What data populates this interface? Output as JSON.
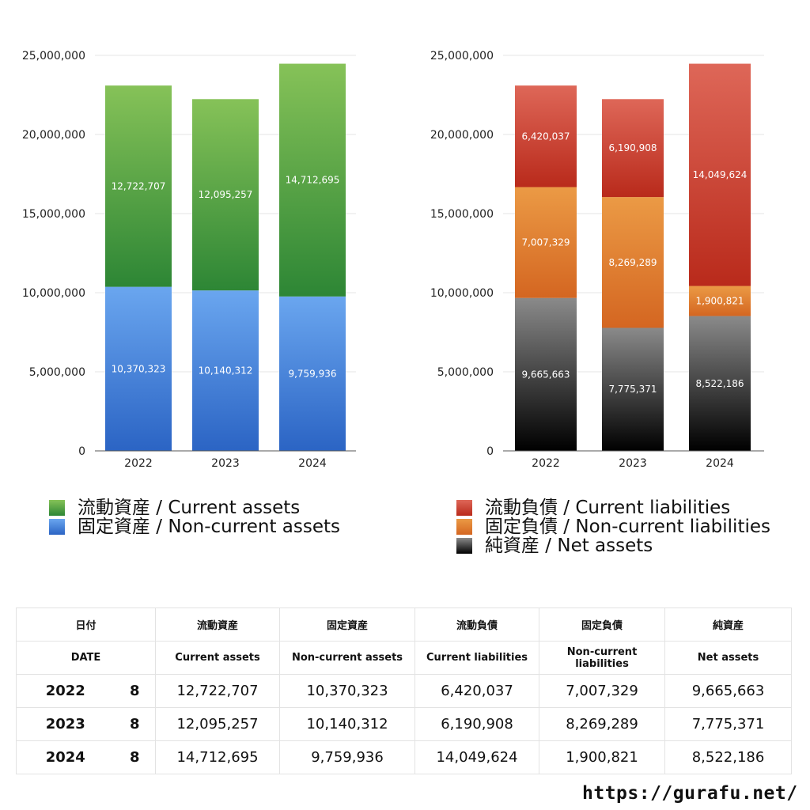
{
  "chart_data": [
    {
      "type": "bar",
      "stacked": true,
      "categories": [
        "2022",
        "2023",
        "2024"
      ],
      "ylim": [
        0,
        25000000
      ],
      "yticks": [
        "0",
        "5,000,000",
        "10,000,000",
        "15,000,000",
        "20,000,000",
        "25,000,000"
      ],
      "grid": true,
      "series": [
        {
          "name": "固定資産 / Non-current assets",
          "values": [
            10370323,
            10140312,
            9759936
          ],
          "labels": [
            "10,370,323",
            "10,140,312",
            "9,759,936"
          ],
          "color_top": "#6aa6ef",
          "color_bottom": "#2b64c4"
        },
        {
          "name": "流動資産 / Current assets",
          "values": [
            12722707,
            12095257,
            14712695
          ],
          "labels": [
            "12,722,707",
            "12,095,257",
            "14,712,695"
          ],
          "color_top": "#86c258",
          "color_bottom": "#2d8635"
        }
      ]
    },
    {
      "type": "bar",
      "stacked": true,
      "categories": [
        "2022",
        "2023",
        "2024"
      ],
      "ylim": [
        0,
        25000000
      ],
      "yticks": [
        "0",
        "5,000,000",
        "10,000,000",
        "15,000,000",
        "20,000,000",
        "25,000,000"
      ],
      "grid": true,
      "series": [
        {
          "name": "純資産 / Net assets",
          "values": [
            9665663,
            7775371,
            8522186
          ],
          "labels": [
            "9,665,663",
            "7,775,371",
            "8,522,186"
          ],
          "color_top": "#8a8a8a",
          "color_bottom": "#000000"
        },
        {
          "name": "固定負債 / Non-current liabilities",
          "values": [
            7007329,
            8269289,
            1900821
          ],
          "labels": [
            "7,007,329",
            "8,269,289",
            "1,900,821"
          ],
          "color_top": "#eb9a45",
          "color_bottom": "#d46621"
        },
        {
          "name": "流動負債 / Current liabilities",
          "values": [
            6420037,
            6190908,
            14049624
          ],
          "labels": [
            "6,420,037",
            "6,190,908",
            "14,049,624"
          ],
          "color_top": "#de6758",
          "color_bottom": "#b92a1b"
        }
      ]
    }
  ],
  "legends": {
    "assets": [
      {
        "label": "流動資産 / Current assets",
        "color": "#4e9e3e"
      },
      {
        "label": "固定資産 / Non-current assets",
        "color": "#3f7fd8"
      }
    ],
    "liabilities": [
      {
        "label": "流動負債 / Current liabilities",
        "color": "#d0402f"
      },
      {
        "label": "固定負債 / Non-current liabilities",
        "color": "#e07f32"
      },
      {
        "label": "純資産 / Net assets",
        "color": "#333333"
      }
    ]
  },
  "table": {
    "header_jp": [
      "日付",
      "流動資産",
      "固定資産",
      "流動負債",
      "固定負債",
      "純資産"
    ],
    "header_en": [
      "DATE",
      "Current assets",
      "Non-current assets",
      "Current liabilities",
      "Non-current liabilities",
      "Net assets"
    ],
    "rows": [
      {
        "year": "2022",
        "month": "8",
        "values": [
          "12,722,707",
          "10,370,323",
          "6,420,037",
          "7,007,329",
          "9,665,663"
        ]
      },
      {
        "year": "2023",
        "month": "8",
        "values": [
          "12,095,257",
          "10,140,312",
          "6,190,908",
          "8,269,289",
          "7,775,371"
        ]
      },
      {
        "year": "2024",
        "month": "8",
        "values": [
          "14,712,695",
          "9,759,936",
          "14,049,624",
          "1,900,821",
          "8,522,186"
        ]
      }
    ]
  },
  "source_url": "https://gurafu.net/"
}
